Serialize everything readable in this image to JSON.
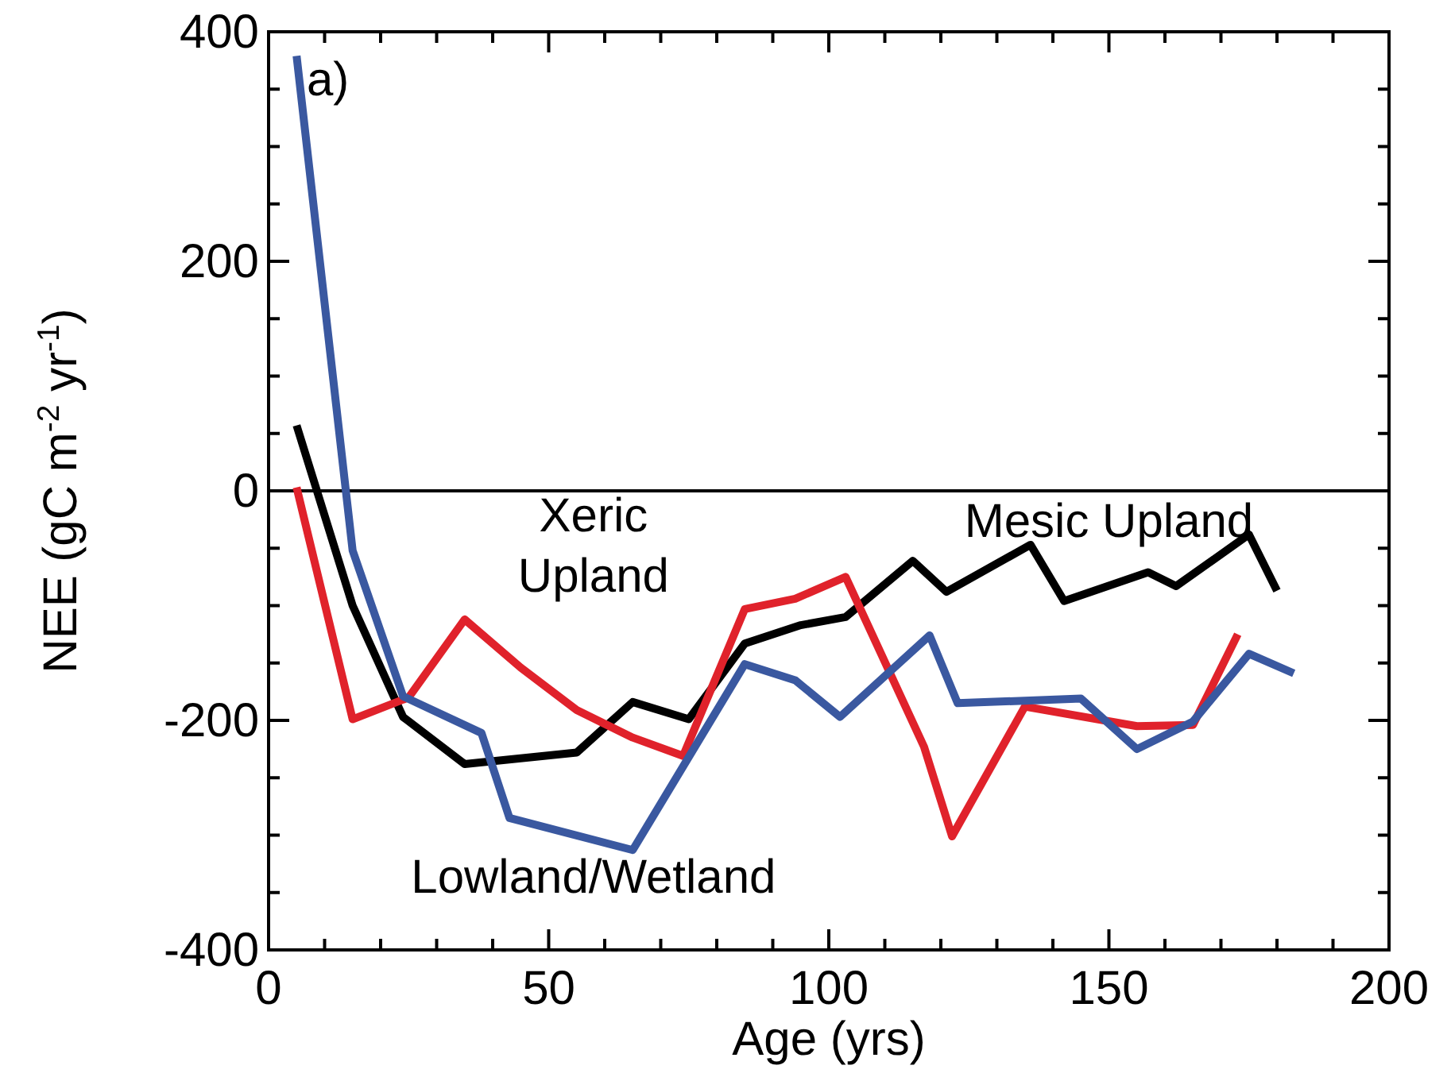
{
  "chart_data": {
    "type": "line",
    "xlabel": "Age (yrs)",
    "ylabel": "NEE (gC m$^{-2}$ yr$^{-1}$)",
    "xlim": [
      0,
      200
    ],
    "ylim": [
      -400,
      400
    ],
    "xticks": [
      0,
      {
        "value": 10,
        "label": null
      },
      {
        "value": 20,
        "label": null
      },
      {
        "value": 30,
        "label": null
      },
      {
        "value": 40,
        "label": null
      },
      50,
      {
        "value": 60,
        "label": null
      },
      {
        "value": 70,
        "label": null
      },
      {
        "value": 80,
        "label": null
      },
      {
        "value": 90,
        "label": null
      },
      100,
      {
        "value": 110,
        "label": null
      },
      {
        "value": 120,
        "label": null
      },
      {
        "value": 130,
        "label": null
      },
      {
        "value": 140,
        "label": null
      },
      150,
      {
        "value": 160,
        "label": null
      },
      {
        "value": 170,
        "label": null
      },
      {
        "value": 180,
        "label": null
      },
      {
        "value": 190,
        "label": null
      },
      200
    ],
    "yticks": [
      -400,
      {
        "value": -350,
        "label": null
      },
      {
        "value": -300,
        "label": null
      },
      {
        "value": -250,
        "label": null
      },
      -200,
      {
        "value": -150,
        "label": null
      },
      {
        "value": -100,
        "label": null
      },
      {
        "value": -50,
        "label": null
      },
      0,
      {
        "value": 50,
        "label": null
      },
      {
        "value": 100,
        "label": null
      },
      {
        "value": 150,
        "label": null
      },
      200,
      {
        "value": 250,
        "label": null
      },
      {
        "value": 300,
        "label": null
      },
      {
        "value": 350,
        "label": null
      },
      400
    ],
    "grid": false,
    "marker": "none",
    "line_style": "solid",
    "ref_lines": [
      {
        "axis": "y",
        "value": 0,
        "color": "#000000"
      }
    ],
    "annotations": [
      "a)"
    ],
    "series": [
      {
        "name": "Mesic Upland",
        "color": "#000000",
        "x": [
          5,
          15,
          24,
          35,
          55,
          65,
          75,
          85,
          95,
          103,
          115,
          121,
          136,
          142,
          157,
          162,
          175,
          180
        ],
        "values": [
          57,
          -100,
          -197,
          -238,
          -228,
          -184,
          -199,
          -133,
          -117,
          -110,
          -61,
          -88,
          -47,
          -96,
          -71,
          -83,
          -38,
          -87
        ]
      },
      {
        "name": "Xeric Upland",
        "color": "#e0222b",
        "x": [
          5,
          15,
          25,
          35,
          45,
          55,
          65,
          74,
          85,
          94,
          103,
          117,
          122,
          135,
          155,
          165,
          173
        ],
        "values": [
          3,
          -199,
          -180,
          -112,
          -154,
          -191,
          -215,
          -231,
          -103,
          -94,
          -75,
          -223,
          -301,
          -188,
          -205,
          -204,
          -125
        ]
      },
      {
        "name": "Lowland/Wetland",
        "color": "#3a58a0",
        "x": [
          5,
          15,
          24,
          38,
          43,
          65,
          85,
          94,
          102,
          118,
          123,
          145,
          155,
          165,
          175,
          183
        ],
        "values": [
          379,
          -52,
          -179,
          -211,
          -285,
          -313,
          -151,
          -165,
          -197,
          -126,
          -185,
          -181,
          -225,
          -201,
          -142,
          -159
        ]
      }
    ]
  }
}
